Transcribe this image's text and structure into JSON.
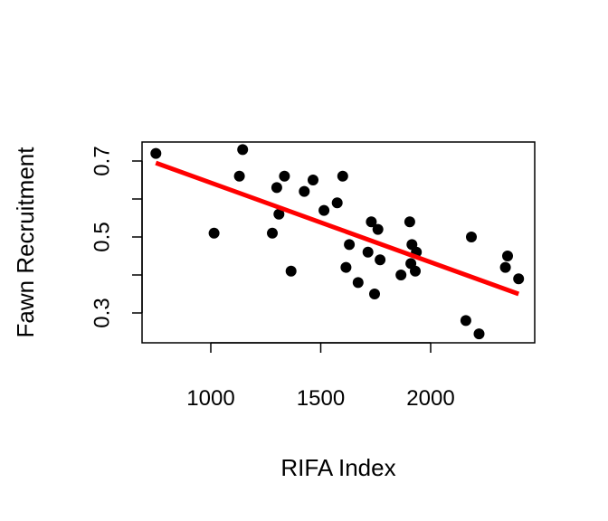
{
  "chart_data": {
    "type": "scatter",
    "title": "",
    "xlabel": "RIFA Index",
    "ylabel": "Fawn Recruitment",
    "xlim": [
      750,
      2400
    ],
    "ylim": [
      0.24,
      0.73
    ],
    "x_ticks": [
      1000,
      1500,
      2000
    ],
    "y_ticks": [
      0.3,
      0.5,
      0.7
    ],
    "x_tick_labels": [
      "1000",
      "1500",
      "2000"
    ],
    "y_tick_labels": [
      "0.3",
      "0.5",
      "0.7"
    ],
    "grid": false,
    "points": [
      {
        "x": 750,
        "y": 0.72
      },
      {
        "x": 1015,
        "y": 0.51
      },
      {
        "x": 1130,
        "y": 0.66
      },
      {
        "x": 1145,
        "y": 0.73
      },
      {
        "x": 1280,
        "y": 0.51
      },
      {
        "x": 1300,
        "y": 0.63
      },
      {
        "x": 1310,
        "y": 0.56
      },
      {
        "x": 1335,
        "y": 0.66
      },
      {
        "x": 1365,
        "y": 0.41
      },
      {
        "x": 1425,
        "y": 0.62
      },
      {
        "x": 1465,
        "y": 0.65
      },
      {
        "x": 1515,
        "y": 0.57
      },
      {
        "x": 1575,
        "y": 0.59
      },
      {
        "x": 1600,
        "y": 0.66
      },
      {
        "x": 1615,
        "y": 0.42
      },
      {
        "x": 1630,
        "y": 0.48
      },
      {
        "x": 1670,
        "y": 0.38
      },
      {
        "x": 1715,
        "y": 0.46
      },
      {
        "x": 1730,
        "y": 0.54
      },
      {
        "x": 1745,
        "y": 0.35
      },
      {
        "x": 1760,
        "y": 0.52
      },
      {
        "x": 1770,
        "y": 0.44
      },
      {
        "x": 1865,
        "y": 0.4
      },
      {
        "x": 1905,
        "y": 0.54
      },
      {
        "x": 1910,
        "y": 0.43
      },
      {
        "x": 1915,
        "y": 0.48
      },
      {
        "x": 1930,
        "y": 0.41
      },
      {
        "x": 1935,
        "y": 0.46
      },
      {
        "x": 2160,
        "y": 0.28
      },
      {
        "x": 2185,
        "y": 0.5
      },
      {
        "x": 2220,
        "y": 0.245
      },
      {
        "x": 2340,
        "y": 0.42
      },
      {
        "x": 2350,
        "y": 0.45
      },
      {
        "x": 2400,
        "y": 0.39
      }
    ],
    "fit_line": {
      "x": [
        750,
        2400
      ],
      "y": [
        0.695,
        0.35
      ],
      "color": "#ff0000"
    },
    "point_color": "#000000"
  }
}
